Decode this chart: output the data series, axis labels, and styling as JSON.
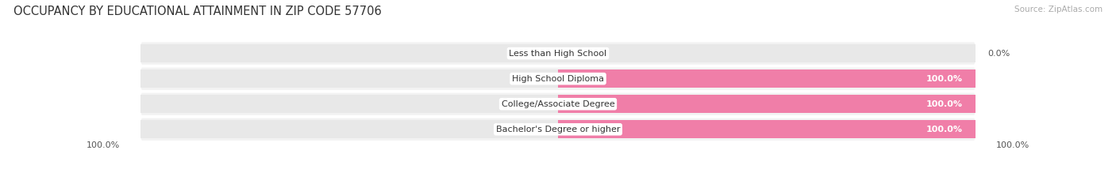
{
  "title": "OCCUPANCY BY EDUCATIONAL ATTAINMENT IN ZIP CODE 57706",
  "source": "Source: ZipAtlas.com",
  "categories": [
    "Less than High School",
    "High School Diploma",
    "College/Associate Degree",
    "Bachelor's Degree or higher"
  ],
  "owner_values": [
    0.0,
    0.0,
    0.0,
    0.0
  ],
  "renter_values": [
    0.0,
    100.0,
    100.0,
    100.0
  ],
  "bottom_left_label": "100.0%",
  "bottom_right_label": "100.0%",
  "owner_color": "#67c4c7",
  "renter_color": "#f07ea8",
  "bar_bg_color": "#e8e8e8",
  "title_fontsize": 10.5,
  "source_fontsize": 7.5,
  "label_fontsize": 8,
  "cat_fontsize": 8,
  "legend_fontsize": 8,
  "bg_color": "#ffffff",
  "row_bg_color": "#f2f2f2"
}
